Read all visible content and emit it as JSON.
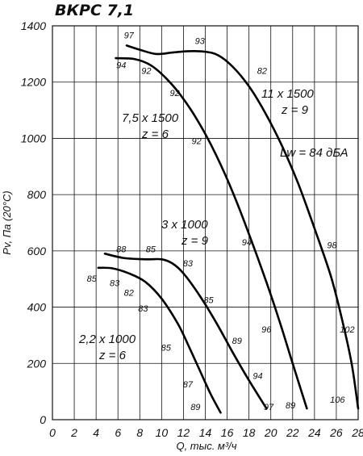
{
  "chart_data": {
    "type": "line",
    "title": "ВКРС 7,1",
    "xlabel": "Q, тыс. м³/ч",
    "ylabel": "Pv, Па (20°С)",
    "xlim": [
      0,
      28
    ],
    "ylim": [
      0,
      1400
    ],
    "x_ticks": [
      "0",
      "2",
      "4",
      "6",
      "8",
      "10",
      "12",
      "14",
      "16",
      "18",
      "20",
      "22",
      "24",
      "26",
      "28"
    ],
    "y_ticks": [
      "0",
      "200",
      "400",
      "600",
      "800",
      "1000",
      "1200",
      "1400"
    ],
    "grid": true,
    "sound_label": "Lw = 84 дБА",
    "series": [
      {
        "labels": [
          "11 x 1500",
          "z = 9"
        ],
        "points": [
          [
            6.8,
            1330
          ],
          [
            8,
            1315
          ],
          [
            9.5,
            1300
          ],
          [
            11,
            1305
          ],
          [
            12.5,
            1310
          ],
          [
            14,
            1308
          ],
          [
            15.2,
            1295
          ],
          [
            16.5,
            1255
          ],
          [
            18,
            1185
          ],
          [
            19.5,
            1090
          ],
          [
            21,
            975
          ],
          [
            22.5,
            840
          ],
          [
            24,
            680
          ],
          [
            25.5,
            510
          ],
          [
            26.5,
            360
          ],
          [
            27.4,
            200
          ],
          [
            28,
            40
          ]
        ],
        "efficiency": [
          {
            "text": "97",
            "x": 7.0,
            "y": 1355
          },
          {
            "text": "93",
            "x": 13.5,
            "y": 1335
          },
          {
            "text": "82",
            "x": 19.2,
            "y": 1230
          },
          {
            "text": "98",
            "x": 25.6,
            "y": 610
          },
          {
            "text": "102",
            "x": 27.0,
            "y": 310
          },
          {
            "text": "106",
            "x": 26.1,
            "y": 60
          }
        ]
      },
      {
        "labels": [
          "7,5 x 1500",
          "z = 6"
        ],
        "points": [
          [
            5.8,
            1285
          ],
          [
            7.5,
            1282
          ],
          [
            9,
            1260
          ],
          [
            10.5,
            1210
          ],
          [
            12,
            1140
          ],
          [
            13.5,
            1050
          ],
          [
            15,
            940
          ],
          [
            16.5,
            810
          ],
          [
            18,
            660
          ],
          [
            19.5,
            500
          ],
          [
            20.8,
            350
          ],
          [
            22,
            200
          ],
          [
            23.3,
            40
          ]
        ],
        "efficiency": [
          {
            "text": "94",
            "x": 6.3,
            "y": 1250
          },
          {
            "text": "92",
            "x": 8.6,
            "y": 1230
          },
          {
            "text": "92",
            "x": 11.2,
            "y": 1150
          },
          {
            "text": "92",
            "x": 13.2,
            "y": 980
          },
          {
            "text": "94",
            "x": 17.8,
            "y": 620
          },
          {
            "text": "96",
            "x": 19.6,
            "y": 310
          },
          {
            "text": "89",
            "x": 21.8,
            "y": 40
          }
        ]
      },
      {
        "labels": [
          "3 x 1000",
          "z = 9"
        ],
        "points": [
          [
            4.8,
            590
          ],
          [
            6.5,
            575
          ],
          [
            8.5,
            570
          ],
          [
            10,
            570
          ],
          [
            11,
            555
          ],
          [
            12,
            520
          ],
          [
            13.5,
            440
          ],
          [
            15,
            345
          ],
          [
            16.5,
            240
          ],
          [
            18,
            140
          ],
          [
            19.6,
            40
          ]
        ],
        "efficiency": [
          {
            "text": "88",
            "x": 6.3,
            "y": 595
          },
          {
            "text": "85",
            "x": 9.0,
            "y": 595
          },
          {
            "text": "83",
            "x": 12.4,
            "y": 545
          },
          {
            "text": "85",
            "x": 14.3,
            "y": 415
          },
          {
            "text": "89",
            "x": 16.9,
            "y": 270
          },
          {
            "text": "94",
            "x": 18.8,
            "y": 145
          },
          {
            "text": "97",
            "x": 19.8,
            "y": 35
          }
        ]
      },
      {
        "labels": [
          "2,2 x 1000",
          "z = 6"
        ],
        "points": [
          [
            4.2,
            540
          ],
          [
            5.5,
            538
          ],
          [
            7,
            520
          ],
          [
            8.5,
            490
          ],
          [
            10,
            430
          ],
          [
            11.5,
            340
          ],
          [
            12.5,
            260
          ],
          [
            13.5,
            175
          ],
          [
            14.5,
            90
          ],
          [
            15.4,
            25
          ]
        ],
        "efficiency": [
          {
            "text": "85",
            "x": 3.6,
            "y": 490
          },
          {
            "text": "83",
            "x": 5.7,
            "y": 475
          },
          {
            "text": "82",
            "x": 7.0,
            "y": 440
          },
          {
            "text": "83",
            "x": 8.3,
            "y": 385
          },
          {
            "text": "85",
            "x": 10.4,
            "y": 245
          },
          {
            "text": "87",
            "x": 12.4,
            "y": 115
          },
          {
            "text": "89",
            "x": 13.1,
            "y": 35
          }
        ]
      }
    ]
  }
}
